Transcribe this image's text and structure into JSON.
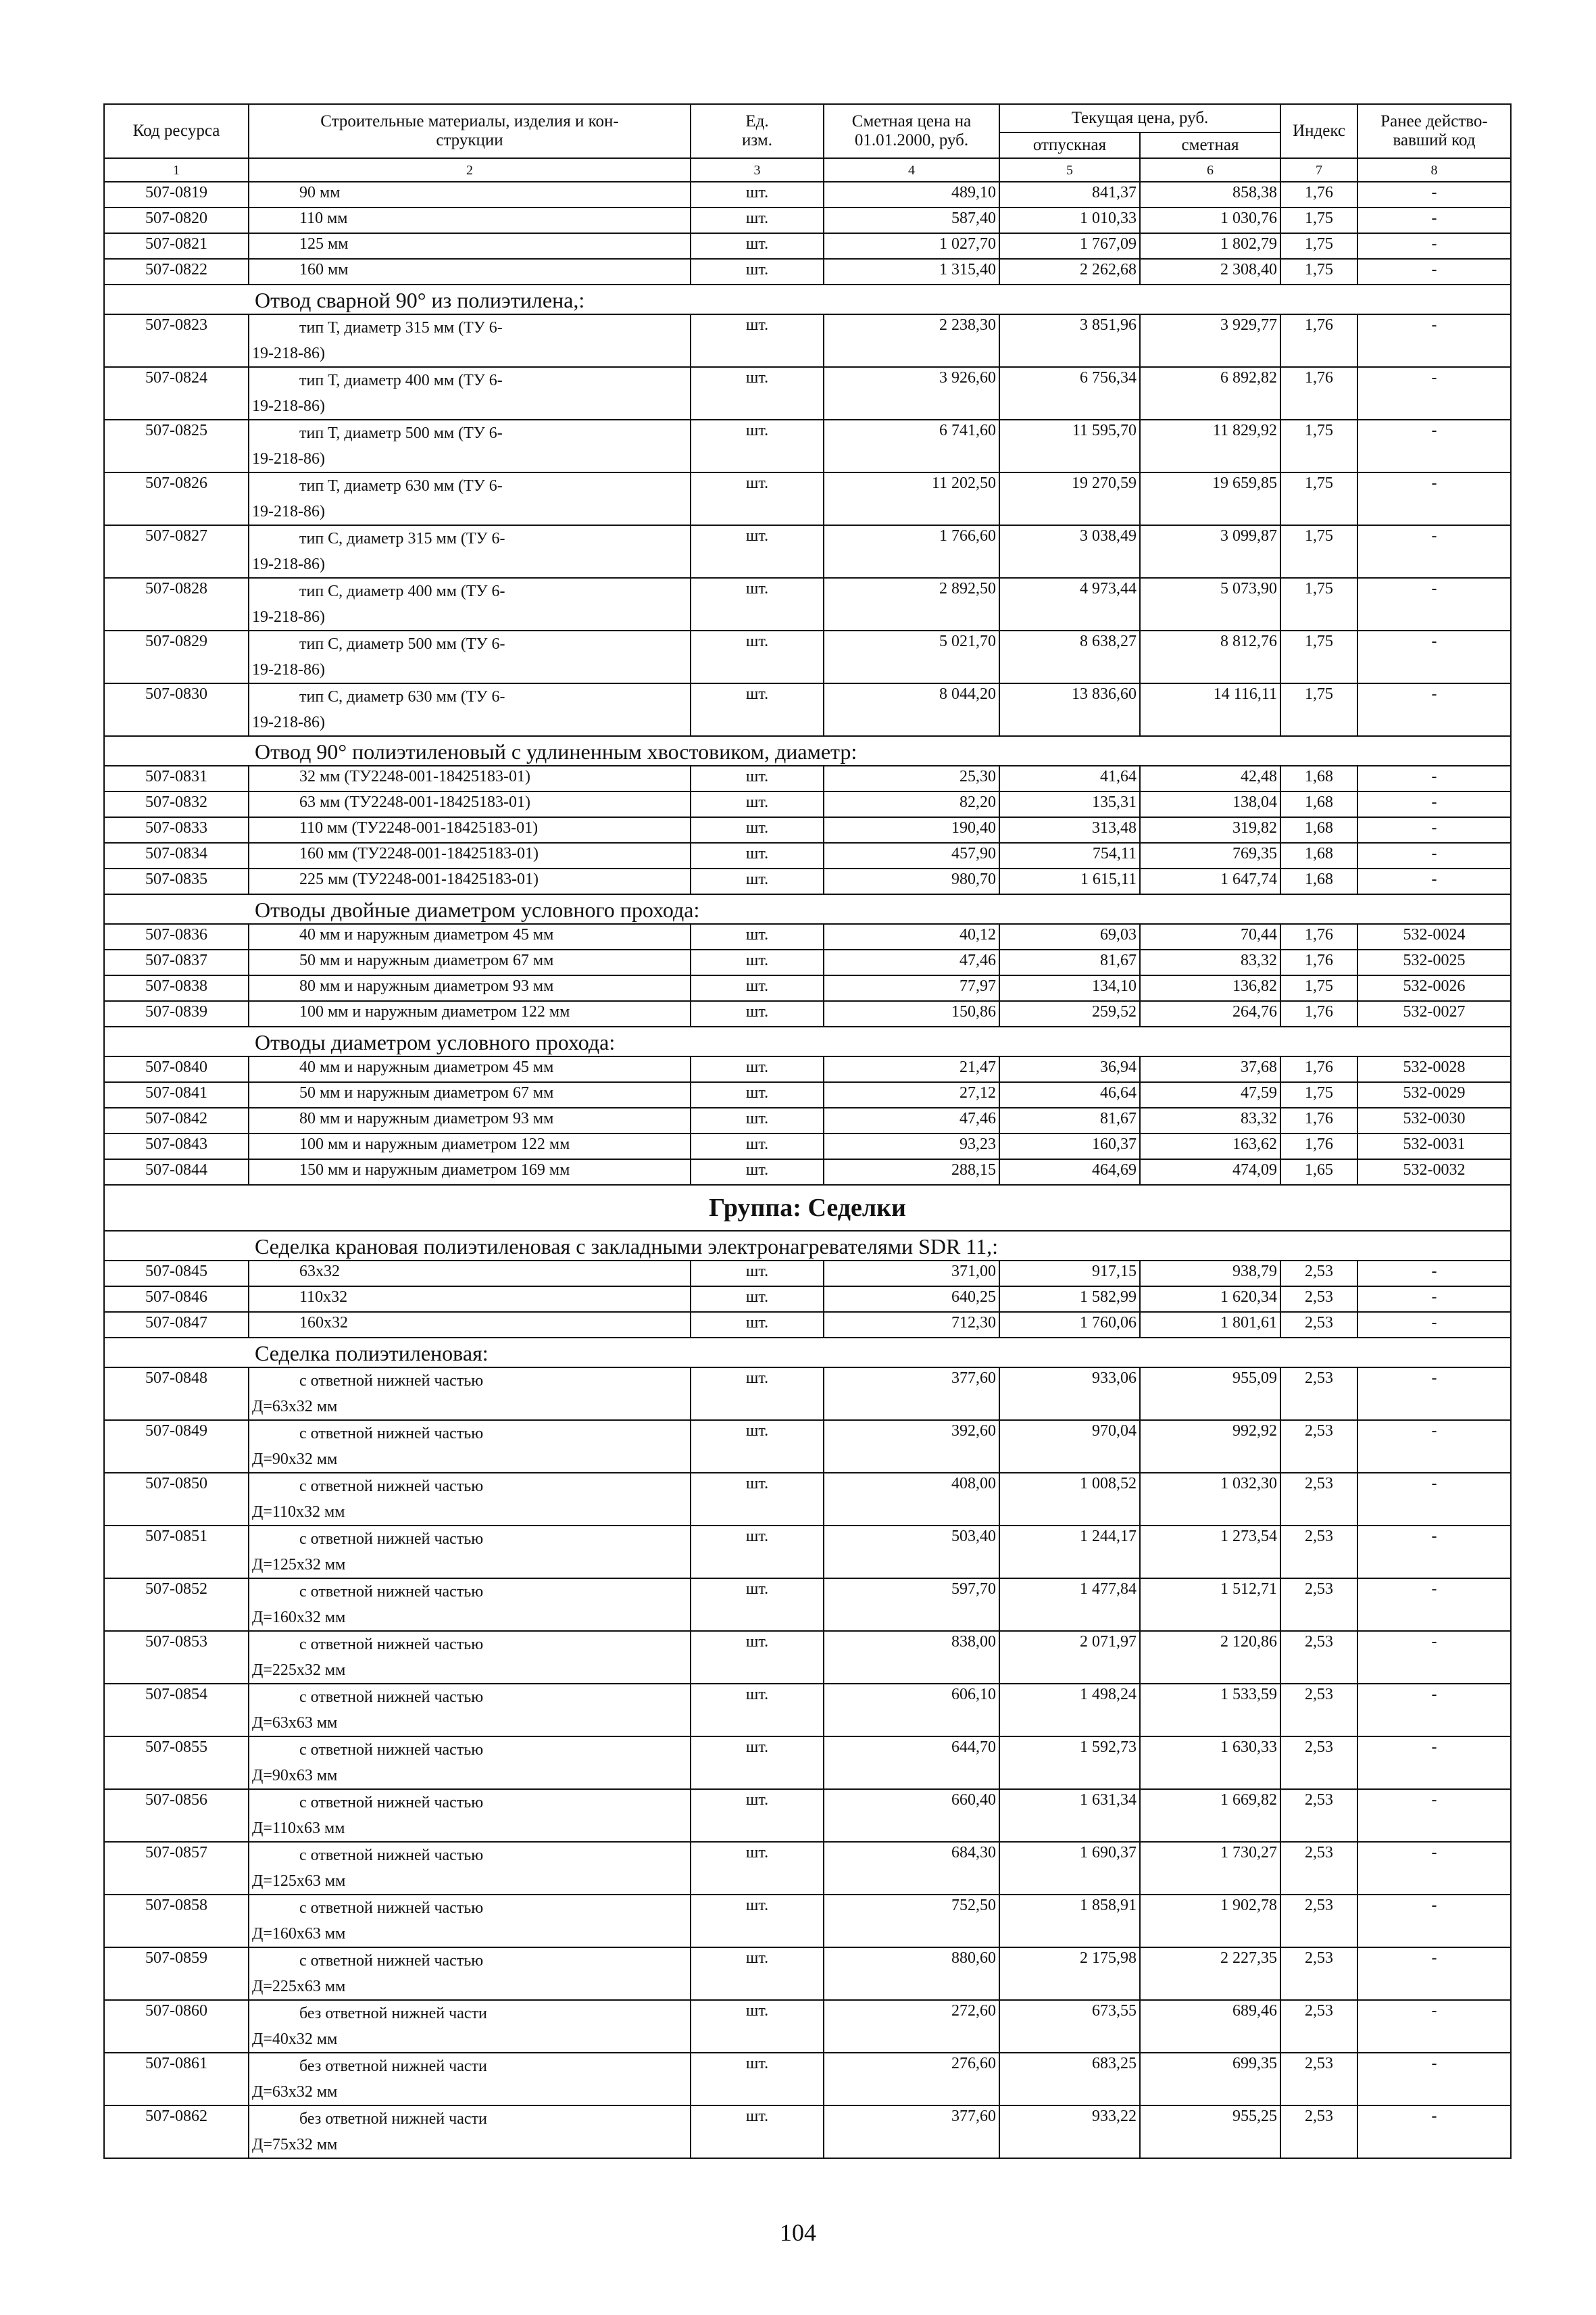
{
  "header": {
    "code": "Код ресурса",
    "materials": [
      "Строительные материалы, изделия и кон-",
      "струкции"
    ],
    "unit": [
      "Ед.",
      "изм."
    ],
    "base_price": [
      "Сметная цена на",
      "01.01.2000, руб."
    ],
    "current_price": "Текущая цена, руб.",
    "release": "отпускная",
    "estimate": "сметная",
    "index": "Индекс",
    "previous": [
      "Ранее действо-",
      "вавший код"
    ],
    "numbers": [
      "1",
      "2",
      "3",
      "4",
      "5",
      "6",
      "7",
      "8"
    ]
  },
  "rows": [
    {
      "type": "item",
      "code": "507-0819",
      "desc": "90 мм",
      "unit": "шт.",
      "base": "489,10",
      "release": "841,37",
      "estimate": "858,38",
      "index": "1,76",
      "prev": "-"
    },
    {
      "type": "item",
      "code": "507-0820",
      "desc": "110 мм",
      "unit": "шт.",
      "base": "587,40",
      "release": "1 010,33",
      "estimate": "1 030,76",
      "index": "1,75",
      "prev": "-"
    },
    {
      "type": "item",
      "code": "507-0821",
      "desc": "125 мм",
      "unit": "шт.",
      "base": "1 027,70",
      "release": "1 767,09",
      "estimate": "1 802,79",
      "index": "1,75",
      "prev": "-"
    },
    {
      "type": "item",
      "code": "507-0822",
      "desc": "160 мм",
      "unit": "шт.",
      "base": "1 315,40",
      "release": "2 262,68",
      "estimate": "2 308,40",
      "index": "1,75",
      "prev": "-"
    },
    {
      "type": "section",
      "title": "Отвод сварной 90° из полиэтилена,:"
    },
    {
      "type": "tall",
      "code": "507-0823",
      "desc": "тип Т, диаметр 315 мм (ТУ 6-19-218-86)",
      "unit": "шт.",
      "base": "2 238,30",
      "release": "3 851,96",
      "estimate": "3 929,77",
      "index": "1,76",
      "prev": "-"
    },
    {
      "type": "tall",
      "code": "507-0824",
      "desc": "тип Т, диаметр 400 мм (ТУ 6-19-218-86)",
      "unit": "шт.",
      "base": "3 926,60",
      "release": "6 756,34",
      "estimate": "6 892,82",
      "index": "1,76",
      "prev": "-"
    },
    {
      "type": "tall",
      "code": "507-0825",
      "desc": "тип Т, диаметр 500 мм (ТУ 6-19-218-86)",
      "unit": "шт.",
      "base": "6 741,60",
      "release": "11 595,70",
      "estimate": "11 829,92",
      "index": "1,75",
      "prev": "-"
    },
    {
      "type": "tall",
      "code": "507-0826",
      "desc": "тип Т, диаметр 630 мм (ТУ 6-19-218-86)",
      "unit": "шт.",
      "base": "11 202,50",
      "release": "19 270,59",
      "estimate": "19 659,85",
      "index": "1,75",
      "prev": "-"
    },
    {
      "type": "tall",
      "code": "507-0827",
      "desc": "тип С, диаметр 315 мм (ТУ 6-19-218-86)",
      "unit": "шт.",
      "base": "1 766,60",
      "release": "3 038,49",
      "estimate": "3 099,87",
      "index": "1,75",
      "prev": "-"
    },
    {
      "type": "tall",
      "code": "507-0828",
      "desc": "тип С, диаметр 400 мм (ТУ 6-19-218-86)",
      "unit": "шт.",
      "base": "2 892,50",
      "release": "4 973,44",
      "estimate": "5 073,90",
      "index": "1,75",
      "prev": "-"
    },
    {
      "type": "tall",
      "code": "507-0829",
      "desc": "тип С, диаметр 500 мм (ТУ 6-19-218-86)",
      "unit": "шт.",
      "base": "5 021,70",
      "release": "8 638,27",
      "estimate": "8 812,76",
      "index": "1,75",
      "prev": "-"
    },
    {
      "type": "tall",
      "code": "507-0830",
      "desc": "тип С, диаметр 630 мм (ТУ 6-19-218-86)",
      "unit": "шт.",
      "base": "8 044,20",
      "release": "13 836,60",
      "estimate": "14 116,11",
      "index": "1,75",
      "prev": "-"
    },
    {
      "type": "section",
      "title": "Отвод 90° полиэтиленовый с удлиненным хвостовиком, диаметр:"
    },
    {
      "type": "item",
      "code": "507-0831",
      "desc": "32 мм (ТУ2248-001-18425183-01)",
      "unit": "шт.",
      "base": "25,30",
      "release": "41,64",
      "estimate": "42,48",
      "index": "1,68",
      "prev": "-"
    },
    {
      "type": "item",
      "code": "507-0832",
      "desc": "63 мм (ТУ2248-001-18425183-01)",
      "unit": "шт.",
      "base": "82,20",
      "release": "135,31",
      "estimate": "138,04",
      "index": "1,68",
      "prev": "-"
    },
    {
      "type": "item",
      "code": "507-0833",
      "desc": "110 мм (ТУ2248-001-18425183-01)",
      "unit": "шт.",
      "base": "190,40",
      "release": "313,48",
      "estimate": "319,82",
      "index": "1,68",
      "prev": "-"
    },
    {
      "type": "item",
      "code": "507-0834",
      "desc": "160 мм (ТУ2248-001-18425183-01)",
      "unit": "шт.",
      "base": "457,90",
      "release": "754,11",
      "estimate": "769,35",
      "index": "1,68",
      "prev": "-"
    },
    {
      "type": "item",
      "code": "507-0835",
      "desc": "225 мм (ТУ2248-001-18425183-01)",
      "unit": "шт.",
      "base": "980,70",
      "release": "1 615,11",
      "estimate": "1 647,74",
      "index": "1,68",
      "prev": "-"
    },
    {
      "type": "section",
      "title": "Отводы двойные диаметром условного прохода:"
    },
    {
      "type": "item",
      "code": "507-0836",
      "desc": "40 мм и наружным диаметром 45 мм",
      "unit": "шт.",
      "base": "40,12",
      "release": "69,03",
      "estimate": "70,44",
      "index": "1,76",
      "prev": "532-0024"
    },
    {
      "type": "item",
      "code": "507-0837",
      "desc": "50 мм и наружным диаметром 67 мм",
      "unit": "шт.",
      "base": "47,46",
      "release": "81,67",
      "estimate": "83,32",
      "index": "1,76",
      "prev": "532-0025"
    },
    {
      "type": "item",
      "code": "507-0838",
      "desc": "80 мм и наружным диаметром 93 мм",
      "unit": "шт.",
      "base": "77,97",
      "release": "134,10",
      "estimate": "136,82",
      "index": "1,75",
      "prev": "532-0026"
    },
    {
      "type": "item",
      "code": "507-0839",
      "desc": "100 мм и наружным диаметром 122 мм",
      "unit": "шт.",
      "base": "150,86",
      "release": "259,52",
      "estimate": "264,76",
      "index": "1,76",
      "prev": "532-0027"
    },
    {
      "type": "section",
      "title": "Отводы диаметром условного прохода:"
    },
    {
      "type": "item",
      "code": "507-0840",
      "desc": "40 мм и наружным диаметром 45 мм",
      "unit": "шт.",
      "base": "21,47",
      "release": "36,94",
      "estimate": "37,68",
      "index": "1,76",
      "prev": "532-0028"
    },
    {
      "type": "item",
      "code": "507-0841",
      "desc": "50 мм и наружным диаметром 67 мм",
      "unit": "шт.",
      "base": "27,12",
      "release": "46,64",
      "estimate": "47,59",
      "index": "1,75",
      "prev": "532-0029"
    },
    {
      "type": "item",
      "code": "507-0842",
      "desc": "80 мм и наружным диаметром 93 мм",
      "unit": "шт.",
      "base": "47,46",
      "release": "81,67",
      "estimate": "83,32",
      "index": "1,76",
      "prev": "532-0030"
    },
    {
      "type": "item",
      "code": "507-0843",
      "desc": "100 мм и наружным диаметром 122 мм",
      "unit": "шт.",
      "base": "93,23",
      "release": "160,37",
      "estimate": "163,62",
      "index": "1,76",
      "prev": "532-0031"
    },
    {
      "type": "item",
      "code": "507-0844",
      "desc": "150 мм и наружным диаметром 169 мм",
      "unit": "шт.",
      "base": "288,15",
      "release": "464,69",
      "estimate": "474,09",
      "index": "1,65",
      "prev": "532-0032"
    },
    {
      "type": "group",
      "title": "Группа: Седелки"
    },
    {
      "type": "section",
      "title": "Седелка крановая полиэтиленовая с закладными электронагревателями SDR 11,:"
    },
    {
      "type": "item",
      "code": "507-0845",
      "desc": "63х32",
      "unit": "шт.",
      "base": "371,00",
      "release": "917,15",
      "estimate": "938,79",
      "index": "2,53",
      "prev": "-"
    },
    {
      "type": "item",
      "code": "507-0846",
      "desc": "110х32",
      "unit": "шт.",
      "base": "640,25",
      "release": "1 582,99",
      "estimate": "1 620,34",
      "index": "2,53",
      "prev": "-"
    },
    {
      "type": "item",
      "code": "507-0847",
      "desc": "160х32",
      "unit": "шт.",
      "base": "712,30",
      "release": "1 760,06",
      "estimate": "1 801,61",
      "index": "2,53",
      "prev": "-"
    },
    {
      "type": "section",
      "title": "Седелка полиэтиленовая:"
    },
    {
      "type": "tall",
      "code": "507-0848",
      "desc": "с ответной нижней частью Д=63х32 мм",
      "unit": "шт.",
      "base": "377,60",
      "release": "933,06",
      "estimate": "955,09",
      "index": "2,53",
      "prev": "-"
    },
    {
      "type": "tall",
      "code": "507-0849",
      "desc": "с ответной нижней частью Д=90х32 мм",
      "unit": "шт.",
      "base": "392,60",
      "release": "970,04",
      "estimate": "992,92",
      "index": "2,53",
      "prev": "-"
    },
    {
      "type": "tall",
      "code": "507-0850",
      "desc": "с ответной нижней частью Д=110х32 мм",
      "unit": "шт.",
      "base": "408,00",
      "release": "1 008,52",
      "estimate": "1 032,30",
      "index": "2,53",
      "prev": "-"
    },
    {
      "type": "tall",
      "code": "507-0851",
      "desc": "с ответной нижней частью Д=125х32 мм",
      "unit": "шт.",
      "base": "503,40",
      "release": "1 244,17",
      "estimate": "1 273,54",
      "index": "2,53",
      "prev": "-"
    },
    {
      "type": "tall",
      "code": "507-0852",
      "desc": "с ответной нижней частью Д=160х32 мм",
      "unit": "шт.",
      "base": "597,70",
      "release": "1 477,84",
      "estimate": "1 512,71",
      "index": "2,53",
      "prev": "-"
    },
    {
      "type": "tall",
      "code": "507-0853",
      "desc": "с ответной нижней частью Д=225х32 мм",
      "unit": "шт.",
      "base": "838,00",
      "release": "2 071,97",
      "estimate": "2 120,86",
      "index": "2,53",
      "prev": "-"
    },
    {
      "type": "tall",
      "code": "507-0854",
      "desc": "с ответной нижней частью Д=63х63 мм",
      "unit": "шт.",
      "base": "606,10",
      "release": "1 498,24",
      "estimate": "1 533,59",
      "index": "2,53",
      "prev": "-"
    },
    {
      "type": "tall",
      "code": "507-0855",
      "desc": "с ответной нижней частью Д=90х63 мм",
      "unit": "шт.",
      "base": "644,70",
      "release": "1 592,73",
      "estimate": "1 630,33",
      "index": "2,53",
      "prev": "-"
    },
    {
      "type": "tall",
      "code": "507-0856",
      "desc": "с ответной нижней частью Д=110х63 мм",
      "unit": "шт.",
      "base": "660,40",
      "release": "1 631,34",
      "estimate": "1 669,82",
      "index": "2,53",
      "prev": "-"
    },
    {
      "type": "tall",
      "code": "507-0857",
      "desc": "с ответной нижней частью Д=125х63 мм",
      "unit": "шт.",
      "base": "684,30",
      "release": "1 690,37",
      "estimate": "1 730,27",
      "index": "2,53",
      "prev": "-"
    },
    {
      "type": "tall",
      "code": "507-0858",
      "desc": "с ответной нижней частью Д=160х63 мм",
      "unit": "шт.",
      "base": "752,50",
      "release": "1 858,91",
      "estimate": "1 902,78",
      "index": "2,53",
      "prev": "-"
    },
    {
      "type": "tall",
      "code": "507-0859",
      "desc": "с ответной нижней частью Д=225х63 мм",
      "unit": "шт.",
      "base": "880,60",
      "release": "2 175,98",
      "estimate": "2 227,35",
      "index": "2,53",
      "prev": "-"
    },
    {
      "type": "tall",
      "code": "507-0860",
      "desc": "без ответной нижней части Д=40х32 мм",
      "unit": "шт.",
      "base": "272,60",
      "release": "673,55",
      "estimate": "689,46",
      "index": "2,53",
      "prev": "-"
    },
    {
      "type": "tall",
      "code": "507-0861",
      "desc": "без ответной нижней части Д=63х32 мм",
      "unit": "шт.",
      "base": "276,60",
      "release": "683,25",
      "estimate": "699,35",
      "index": "2,53",
      "prev": "-"
    },
    {
      "type": "tall",
      "code": "507-0862",
      "desc": "без ответной нижней части Д=75х32 мм",
      "unit": "шт.",
      "base": "377,60",
      "release": "933,22",
      "estimate": "955,25",
      "index": "2,53",
      "prev": "-"
    }
  ],
  "page_number": "104"
}
